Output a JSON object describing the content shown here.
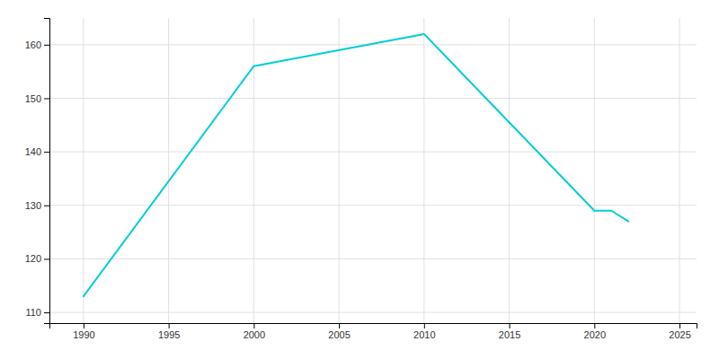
{
  "chart_data": {
    "type": "line",
    "x": [
      1990,
      2000,
      2010,
      2020,
      2021,
      2022
    ],
    "values": [
      113,
      156,
      162,
      129,
      129,
      127
    ],
    "color": "#00CED1",
    "xlim": [
      1988,
      2026
    ],
    "ylim": [
      108,
      165
    ],
    "xticks": [
      1990,
      1995,
      2000,
      2005,
      2010,
      2015,
      2020,
      2025
    ],
    "yticks": [
      110,
      120,
      130,
      140,
      150,
      160
    ],
    "grid": true
  }
}
